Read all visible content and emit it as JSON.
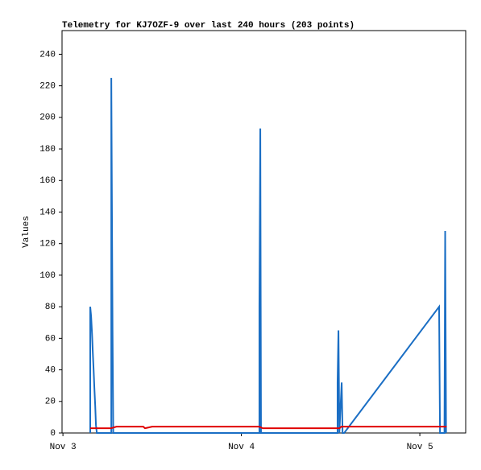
{
  "chart_data": {
    "type": "line",
    "title": "Telemetry for KJ7OZF-9 over last 240 hours (203 points)",
    "y_label": "Values",
    "xlim": [
      -0.005,
      2.257
    ],
    "xticks": [
      {
        "value": 0,
        "label": "Nov 3"
      },
      {
        "value": 1,
        "label": "Nov 4"
      },
      {
        "value": 2,
        "label": "Nov 5"
      }
    ],
    "ylim": [
      0,
      255
    ],
    "yticks": [
      0,
      20,
      40,
      60,
      80,
      100,
      120,
      140,
      160,
      180,
      200,
      220,
      240
    ],
    "series": [
      {
        "color": "#1a6ec4",
        "x": [
          0.153,
          0.153,
          0.158,
          0.163,
          0.167,
          0.172,
          0.176,
          0.181,
          0.185,
          0.19,
          0.271,
          0.271,
          0.278,
          0.282,
          1.101,
          1.101,
          1.106,
          1.11,
          1.539,
          1.539,
          1.544,
          1.549,
          1.562,
          1.567,
          1.576,
          2.108,
          2.113,
          2.138,
          2.142,
          2.147
        ],
        "values": [
          0,
          80,
          74,
          63,
          52,
          40,
          29,
          17,
          5,
          0,
          0,
          225,
          65,
          0,
          0,
          80,
          193,
          0,
          0,
          32,
          65,
          0,
          32,
          0,
          0,
          80,
          0,
          0,
          128,
          0
        ]
      },
      {
        "color": "#e00000",
        "x": [
          0.153,
          0.27,
          0.3,
          0.45,
          0.46,
          0.5,
          1.1,
          1.12,
          1.55,
          1.56,
          2.15
        ],
        "values": [
          3,
          3,
          4,
          4,
          3,
          4,
          4,
          3,
          3,
          4,
          4
        ]
      }
    ]
  }
}
